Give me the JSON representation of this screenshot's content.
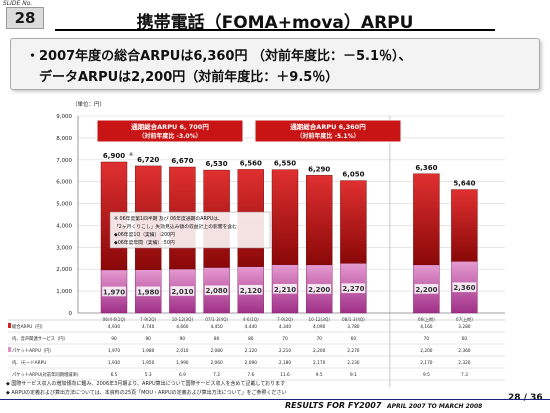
{
  "slide": {
    "no_label": "SLIDE No.",
    "number": "28",
    "title": "携帯電話（FOMA+mova）ARPU"
  },
  "summary": {
    "line1": "・2007年度の総合ARPUは6,360円 （対前年度比：－5.1％）、",
    "line2": "データARPUは2,200円（対前年度比：＋9.5％）"
  },
  "chart_data": {
    "type": "bar",
    "unit_label": "（単位：円）",
    "ylim": [
      0,
      9000
    ],
    "yticks": [
      "0",
      "1,000",
      "2,000",
      "3,000",
      "4,000",
      "5,000",
      "6,000",
      "7,000",
      "8,000",
      "9,000"
    ],
    "categories": [
      "06/4-6(1Q)",
      "7-9(2Q)",
      "10-12(3Q)",
      "07/1-3(4Q)",
      "4-6(1Q)",
      "7-9(2Q)",
      "10-12(3Q)",
      "08/1-3(4Q)",
      "06(上期)",
      "07(上期)"
    ],
    "series": [
      {
        "values": [
          1970,
          1980,
          2010,
          2080,
          2120,
          2210,
          2200,
          2270,
          2200,
          2360
        ]
      },
      {
        "values": [
          4930,
          4740,
          4660,
          4450,
          4440,
          4340,
          4090,
          3780,
          4160,
          3280
        ]
      }
    ],
    "totals": [
      6900,
      6720,
      6670,
      6530,
      6560,
      6550,
      6290,
      6050,
      6360,
      5640
    ],
    "total_labels": [
      "6,900",
      "6,720",
      "6,670",
      "6,530",
      "6,560",
      "6,550",
      "6,290",
      "6,050",
      "6,360",
      "5,640"
    ],
    "total_marks": [
      "※",
      "",
      "",
      "",
      "",
      "",
      "",
      "",
      "",
      ""
    ],
    "data_labels": [
      "1,970",
      "1,980",
      "2,010",
      "2,080",
      "2,120",
      "2,210",
      "2,200",
      "2,270",
      "2,200",
      "2,360"
    ],
    "callouts": [
      {
        "line1": "通期総合ARPU 6, 700円",
        "line2": "（対前年度比 -3.0%）"
      },
      {
        "line1": "通期総合ARPU 6,360円",
        "line2": "（対前年度比 -5.1%）"
      }
    ],
    "note_box": [
      "※ 06年度第1四半期 及び 06年度通期のARPUは、",
      "「2ヶ月くりこし」失効見込み額の収益計上の影響を含む",
      "◆06年度1Q（実績）:200円",
      "◆06年度年間（実績）:50円"
    ],
    "table": {
      "rows": [
        {
          "legend": "総合ARPU（円）",
          "values": [
            "4,930",
            "4,740",
            "4,660",
            "4,450",
            "4,440",
            "4,340",
            "4,090",
            "3,780",
            "4,160",
            "3,280"
          ]
        },
        {
          "legend": "内、音声関連サービス（円）",
          "values": [
            "90",
            "90",
            "90",
            "80",
            "80",
            "70",
            "70",
            "60",
            "70",
            "60"
          ]
        },
        {
          "legend": "パケットARPU（円）",
          "values": [
            "1,970",
            "1,980",
            "2,010",
            "2,080",
            "2,120",
            "2,210",
            "2,200",
            "2,270",
            "2,200",
            "2,360"
          ]
        },
        {
          "legend": "内、iモードARPU",
          "values": [
            "1,930",
            "1,950",
            "1,990",
            "2,060",
            "2,090",
            "2,180",
            "2,170",
            "2,230",
            "2,170",
            "2,320"
          ]
        },
        {
          "legend": "パケットARPU(対前年同期増減率)",
          "values": [
            "6.5",
            "5.3",
            "6.9",
            "7.2",
            "7.6",
            "11.6",
            "9.5",
            "9.1",
            "9.5",
            "7.3"
          ]
        }
      ]
    }
  },
  "notes": [
    "◆ 国際サービス収入の増加傾向に鑑み、2006年3月期より、ARPU算出について国際サービス収入を含めて記載しております",
    "◆ ARPUの定義および算出方法については、本資料の25頁「MOU・ARPUの定義および算出方法について」をご参照ください"
  ],
  "footer": {
    "title": "RESULTS FOR FY2007",
    "period": "APRIL 2007 TO MARCH 2008",
    "page": "28 / 36"
  },
  "colors": {
    "voice_top": "#d42020",
    "voice_bottom": "#7a0000",
    "packet_top": "#e090c8",
    "packet_bottom": "#9a2a80",
    "callout": "#c81414",
    "footer_line": "#1a237e"
  }
}
